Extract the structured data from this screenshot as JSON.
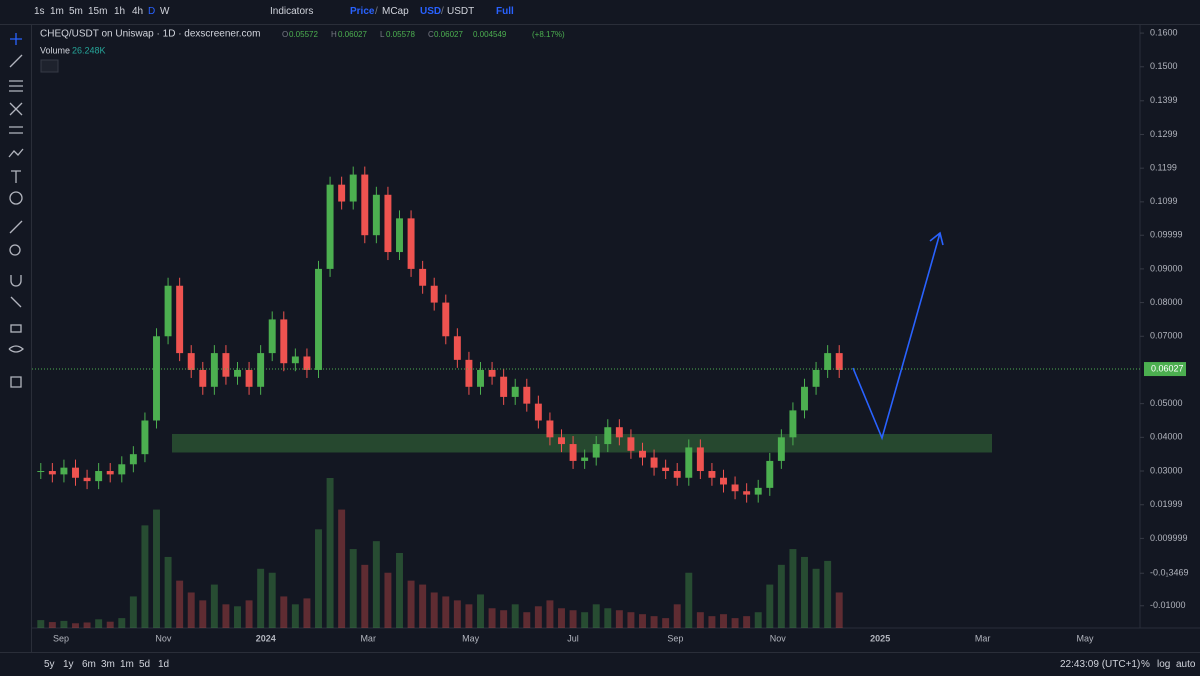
{
  "toolbar": {
    "intervals": [
      "1s",
      "1m",
      "5m",
      "15m",
      "1h",
      "4h",
      "D",
      "W"
    ],
    "indicators": "Indicators",
    "price": "Price",
    "mcap": "MCap",
    "usd": "USD",
    "usdt": "USDT",
    "full": "Full"
  },
  "legend": {
    "title": "CHEQ/USDT on Uniswap · 1D · dexscreener.com",
    "o_label": "O",
    "o": 0.05572,
    "h_label": "H",
    "h": 0.06027,
    "l_label": "L",
    "l": 0.05578,
    "c_label": "C",
    "c": 0.06027,
    "change": 0.004549,
    "change_pct": "(+8.17%)",
    "volume_label": "Volume",
    "volume": "26.248K"
  },
  "chart_data": {
    "type": "candlestick",
    "closes": [
      0.03,
      0.029,
      0.031,
      0.028,
      0.027,
      0.03,
      0.029,
      0.032,
      0.035,
      0.045,
      0.07,
      0.085,
      0.065,
      0.06,
      0.055,
      0.065,
      0.058,
      0.06,
      0.055,
      0.065,
      0.075,
      0.062,
      0.064,
      0.06,
      0.09,
      0.115,
      0.11,
      0.118,
      0.1,
      0.112,
      0.095,
      0.105,
      0.09,
      0.085,
      0.08,
      0.07,
      0.063,
      0.055,
      0.06,
      0.058,
      0.052,
      0.055,
      0.05,
      0.045,
      0.04,
      0.038,
      0.033,
      0.034,
      0.038,
      0.043,
      0.04,
      0.036,
      0.034,
      0.031,
      0.03,
      0.028,
      0.037,
      0.03,
      0.028,
      0.026,
      0.024,
      0.023,
      0.025,
      0.033,
      0.04,
      0.048,
      0.055,
      0.06,
      0.065,
      0.06
    ],
    "volumes": [
      20,
      15,
      18,
      12,
      14,
      22,
      16,
      25,
      80,
      260,
      300,
      180,
      120,
      90,
      70,
      110,
      60,
      55,
      70,
      150,
      140,
      80,
      60,
      75,
      250,
      380,
      300,
      200,
      160,
      220,
      140,
      190,
      120,
      110,
      90,
      80,
      70,
      60,
      85,
      50,
      45,
      60,
      40,
      55,
      70,
      50,
      45,
      40,
      60,
      50,
      45,
      40,
      35,
      30,
      25,
      60,
      140,
      40,
      30,
      35,
      25,
      30,
      40,
      110,
      160,
      200,
      180,
      150,
      170,
      90
    ],
    "ylim": [
      -0.0166,
      0.1624
    ],
    "yticks": [
      {
        "value": 0.16,
        "label": "0.1600"
      },
      {
        "value": 0.15,
        "label": "0.1500"
      },
      {
        "value": 0.1399,
        "label": "0.1399"
      },
      {
        "value": 0.1299,
        "label": "0.1299"
      },
      {
        "value": 0.1199,
        "label": "0.1199"
      },
      {
        "value": 0.1099,
        "label": "0.1099"
      },
      {
        "value": 0.09999,
        "label": "0.09999"
      },
      {
        "value": 0.09,
        "label": "0.09000"
      },
      {
        "value": 0.08,
        "label": "0.08000"
      },
      {
        "value": 0.07,
        "label": "0.07000"
      },
      {
        "value": 0.05,
        "label": "0.05000"
      },
      {
        "value": 0.04,
        "label": "0.04000"
      },
      {
        "value": 0.03,
        "label": "0.03000"
      },
      {
        "value": 0.01999,
        "label": "0.01999"
      },
      {
        "value": 0.009999,
        "label": "0.009999"
      },
      {
        "value": -0.0003469,
        "label": "-0.0₁3469"
      },
      {
        "value": -0.01,
        "label": "-0.01000"
      }
    ],
    "xlabels": [
      "Sep",
      "Nov",
      "2024",
      "Mar",
      "May",
      "Jul",
      "Sep",
      "Nov",
      "2025",
      "Mar",
      "May"
    ],
    "last_price": 0.06027,
    "zone": [
      0.0355,
      0.041
    ]
  },
  "footer": {
    "ranges": [
      "5y",
      "1y",
      "6m",
      "3m",
      "1m",
      "5d",
      "1d"
    ],
    "clock": "22:43:09 (UTC+1)",
    "percent": "%",
    "log": "log",
    "auto": "auto"
  }
}
